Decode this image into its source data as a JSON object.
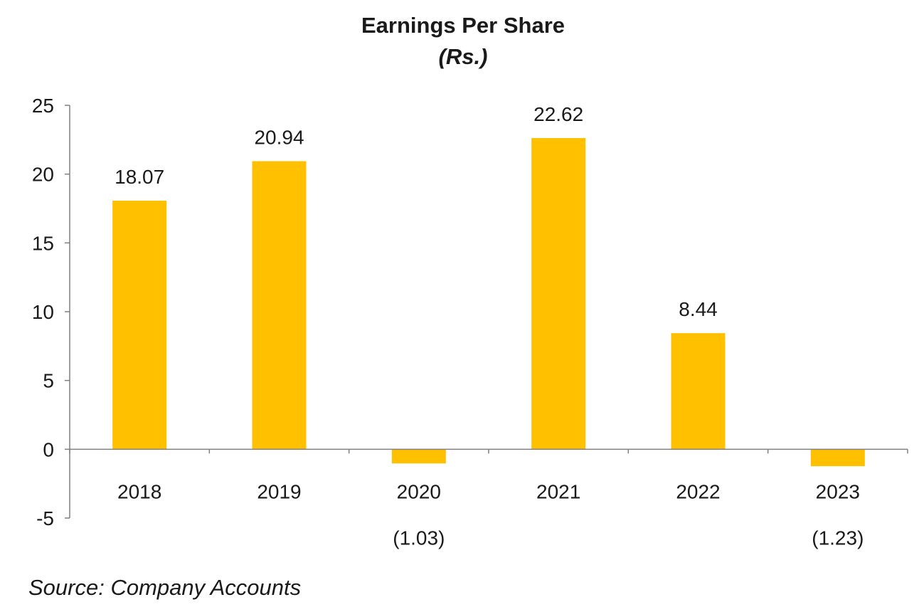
{
  "chart_data": {
    "type": "bar",
    "title": "Earnings Per Share",
    "subtitle": "(Rs.)",
    "categories": [
      "2018",
      "2019",
      "2020",
      "2021",
      "2022",
      "2023"
    ],
    "values": [
      18.07,
      20.94,
      -1.03,
      22.62,
      8.44,
      -1.23
    ],
    "data_labels": [
      "18.07",
      "20.94",
      "(1.03)",
      "22.62",
      "8.44",
      "(1.23)"
    ],
    "y_ticks": [
      25,
      20,
      15,
      10,
      5,
      0,
      -5
    ],
    "y_tick_labels": [
      "25",
      "20",
      "15",
      "10",
      "5",
      "0",
      "-5"
    ],
    "ylim": [
      -5,
      25
    ],
    "xlabel": "",
    "ylabel": "",
    "grid": false,
    "legend": "none",
    "bar_color": "#ffc000",
    "source": "Source: Company Accounts"
  }
}
